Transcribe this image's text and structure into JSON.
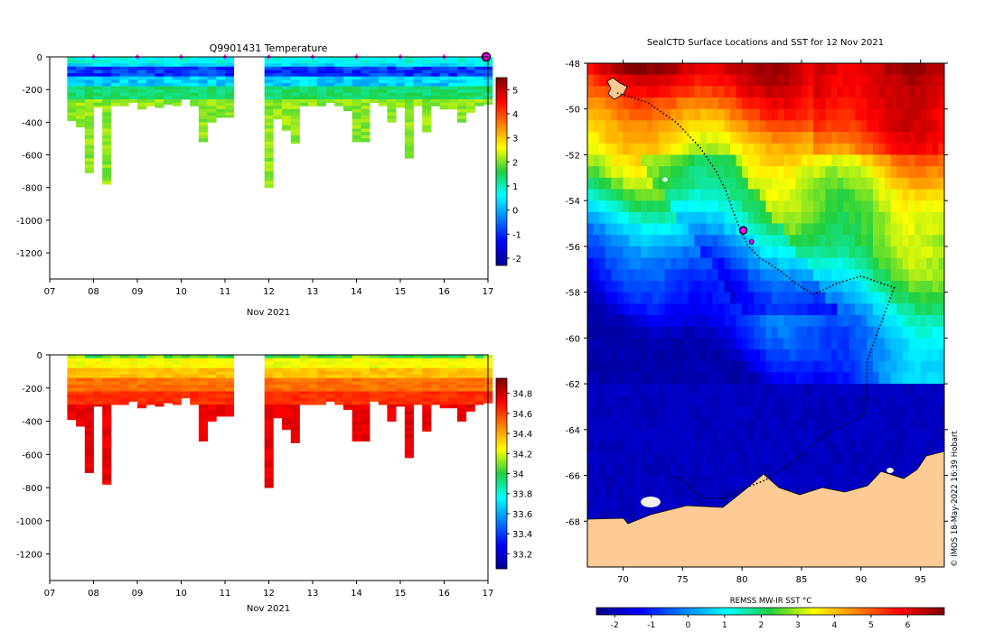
{
  "chart_data": [
    {
      "type": "heatmap",
      "id": "temperature",
      "title": "Q9901431  Temperature",
      "xlabel": "Nov 2021",
      "x_ticks": [
        "07",
        "08",
        "09",
        "10",
        "11",
        "12",
        "13",
        "14",
        "15",
        "16",
        "17"
      ],
      "y_ticks": [
        "0",
        "-200",
        "-400",
        "-600",
        "-800",
        "-1000",
        "-1200"
      ],
      "ylim": [
        -1360,
        0
      ],
      "colorbar": {
        "ticks": [
          "5",
          "4",
          "3",
          "2",
          "1",
          "0",
          "-1",
          "-2"
        ],
        "range": [
          -2.3,
          5.5
        ]
      },
      "surface_markers_day": [
        8,
        9,
        10,
        11,
        12,
        13,
        14,
        15,
        16
      ],
      "current_marker_day": 17,
      "profile_max_depth": {
        "day": [
          7.5,
          7.7,
          7.9,
          8.1,
          8.3,
          8.5,
          8.7,
          8.9,
          9.1,
          9.3,
          9.5,
          9.7,
          9.9,
          10.1,
          10.3,
          10.5,
          10.7,
          10.9,
          11.1,
          12.0,
          12.2,
          12.4,
          12.6,
          12.8,
          13.0,
          13.2,
          13.4,
          13.6,
          13.8,
          14.0,
          14.2,
          14.4,
          14.6,
          14.8,
          15.0,
          15.2,
          15.4,
          15.6,
          15.8,
          16.0,
          16.2,
          16.4,
          16.6,
          16.8,
          17.0
        ],
        "depth": [
          390,
          430,
          710,
          310,
          780,
          300,
          300,
          280,
          320,
          300,
          310,
          290,
          300,
          260,
          300,
          520,
          400,
          370,
          370,
          800,
          380,
          450,
          530,
          300,
          300,
          300,
          280,
          300,
          330,
          520,
          520,
          280,
          300,
          400,
          310,
          620,
          300,
          460,
          300,
          320,
          320,
          400,
          340,
          300,
          290
        ]
      }
    },
    {
      "type": "heatmap",
      "id": "salinity",
      "title": "",
      "xlabel": "Nov 2021",
      "x_ticks": [
        "07",
        "08",
        "09",
        "10",
        "11",
        "12",
        "13",
        "14",
        "15",
        "16",
        "17"
      ],
      "y_ticks": [
        "0",
        "-200",
        "-400",
        "-600",
        "-800",
        "-1000",
        "-1200"
      ],
      "ylim": [
        -1360,
        0
      ],
      "colorbar": {
        "ticks": [
          "34.8",
          "34.6",
          "34.4",
          "34.2",
          "34",
          "33.8",
          "33.6",
          "33.4",
          "33.2"
        ],
        "range": [
          33.05,
          34.95
        ]
      }
    },
    {
      "type": "heatmap",
      "id": "sst-map",
      "title": "SealCTD Surface Locations and SST for 12 Nov 2021",
      "xlabel": "REMSS MW-IR SST °C",
      "x_ticks": [
        "70",
        "75",
        "80",
        "85",
        "90",
        "95"
      ],
      "xlim": [
        67,
        97
      ],
      "y_ticks": [
        "-48",
        "-50",
        "-52",
        "-54",
        "-56",
        "-58",
        "-60",
        "-62",
        "-64",
        "-66",
        "-68"
      ],
      "ylim": [
        -70,
        -48
      ],
      "colorbar": {
        "ticks": [
          "-2",
          "-1",
          "0",
          "1",
          "2",
          "3",
          "4",
          "5",
          "6"
        ],
        "range": [
          -2.5,
          7.0
        ]
      },
      "seal_track": {
        "lon": [
          69.5,
          72,
          74.5,
          76.5,
          77.8,
          78.6,
          79.2,
          79.8,
          80.5,
          81.5,
          83,
          84.5,
          86,
          88,
          90,
          92.8,
          91.5,
          90.5,
          90.5,
          90.2,
          87,
          84.5,
          82,
          80,
          78.5,
          77,
          76,
          75,
          74
        ],
        "lat": [
          -49.3,
          -49.7,
          -50.6,
          -51.7,
          -52.7,
          -53.5,
          -54.4,
          -55.2,
          -56.0,
          -56.5,
          -57.0,
          -57.6,
          -58.1,
          -57.6,
          -57.3,
          -57.8,
          -59.6,
          -61.0,
          -62.5,
          -63.4,
          -64.2,
          -65.3,
          -66.2,
          -66.6,
          -67.0,
          -67.0,
          -66.7,
          -66.2,
          -66.0
        ]
      },
      "current_positions": [
        {
          "lon": 80.1,
          "lat": -55.3
        },
        {
          "lon": 80.8,
          "lat": -55.8
        }
      ]
    }
  ],
  "credit": "© IMOS 18-May-2022 16:39 Hobart"
}
